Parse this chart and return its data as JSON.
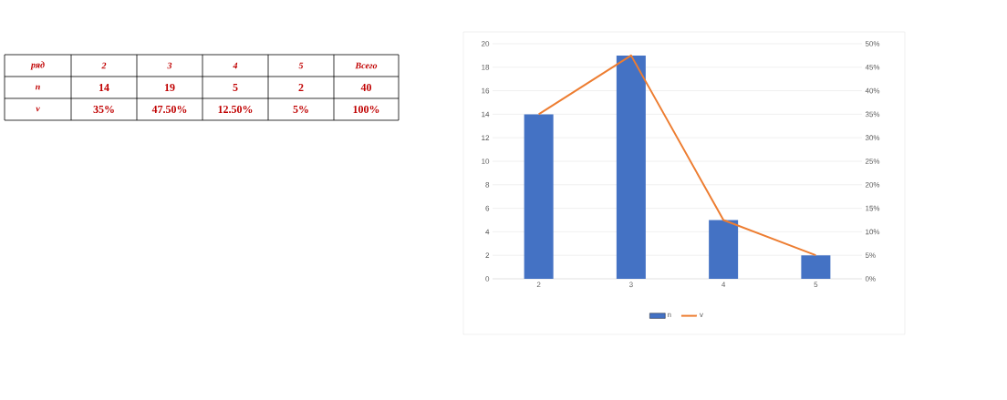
{
  "chart_data": {
    "type": "bar",
    "categories": [
      "2",
      "3",
      "4",
      "5"
    ],
    "series": [
      {
        "name": "n",
        "color": "#4472c4",
        "values": [
          14,
          19,
          5,
          2
        ]
      },
      {
        "name": "v",
        "type": "line",
        "axis": "y2",
        "color": "#ed7d31",
        "values": [
          35,
          47.5,
          12.5,
          5
        ]
      }
    ],
    "ylim": [
      0,
      20
    ],
    "yticks": [
      0,
      2,
      4,
      6,
      8,
      10,
      12,
      14,
      16,
      18,
      20
    ],
    "y2lim": [
      0,
      50
    ],
    "y2ticks": [
      {
        "value": 0,
        "label": "0%"
      },
      {
        "value": 5,
        "label": "5%"
      },
      {
        "value": 10,
        "label": "10%"
      },
      {
        "value": 15,
        "label": "15%"
      },
      {
        "value": 20,
        "label": "20%"
      },
      {
        "value": 25,
        "label": "25%"
      },
      {
        "value": 30,
        "label": "30%"
      },
      {
        "value": 35,
        "label": "35%"
      },
      {
        "value": 40,
        "label": "40%"
      },
      {
        "value": 45,
        "label": "45%"
      },
      {
        "value": 50,
        "label": "50%"
      }
    ],
    "grid": "y",
    "legend": "bottom",
    "annotations": [
      "ряд",
      "2",
      "3",
      "4",
      "5",
      "Всего",
      "n",
      "14",
      "19",
      "5",
      "2",
      "40",
      "v",
      "35%",
      "47.50%",
      "12.50%",
      "5%",
      "100%"
    ]
  }
}
